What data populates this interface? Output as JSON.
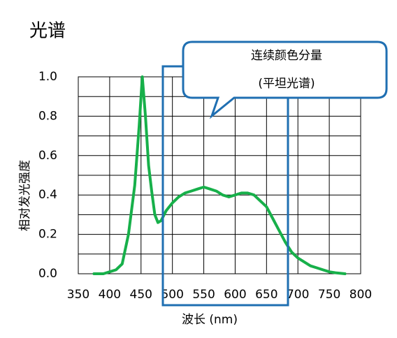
{
  "chart_data": {
    "type": "line",
    "title": "光谱",
    "x_label": "波长 (nm)",
    "y_label": "相对发光强度",
    "annotation": [
      "连续颜色分量",
      "(平坦光谱)"
    ],
    "x": [
      375,
      390,
      400,
      410,
      420,
      430,
      440,
      447,
      452,
      457,
      462,
      467,
      472,
      477,
      482,
      490,
      500,
      510,
      520,
      530,
      540,
      550,
      560,
      570,
      580,
      590,
      600,
      610,
      620,
      630,
      640,
      650,
      660,
      670,
      680,
      690,
      700,
      710,
      720,
      730,
      740,
      750,
      760,
      775
    ],
    "series": [
      {
        "color": "#17b04a",
        "values": [
          0.0,
          0.0,
          0.01,
          0.02,
          0.05,
          0.2,
          0.45,
          0.75,
          1.0,
          0.8,
          0.55,
          0.42,
          0.3,
          0.26,
          0.27,
          0.32,
          0.36,
          0.39,
          0.41,
          0.42,
          0.43,
          0.44,
          0.43,
          0.42,
          0.4,
          0.39,
          0.4,
          0.41,
          0.41,
          0.4,
          0.37,
          0.34,
          0.28,
          0.22,
          0.16,
          0.11,
          0.08,
          0.06,
          0.04,
          0.03,
          0.02,
          0.01,
          0.005,
          0.0
        ]
      }
    ],
    "xlim": [
      350,
      800
    ],
    "xticks": [
      350,
      400,
      450,
      500,
      550,
      600,
      650,
      700,
      750,
      800
    ],
    "ylim": [
      0,
      1
    ],
    "yticks": [
      {
        "value": 0,
        "label": "0.0"
      },
      0.2,
      0.4,
      0.6,
      0.8,
      {
        "value": 1,
        "label": "1.0"
      }
    ],
    "y_minor_ticks": [
      0.1,
      0.3,
      0.5,
      0.7,
      0.9
    ],
    "grid": true
  }
}
